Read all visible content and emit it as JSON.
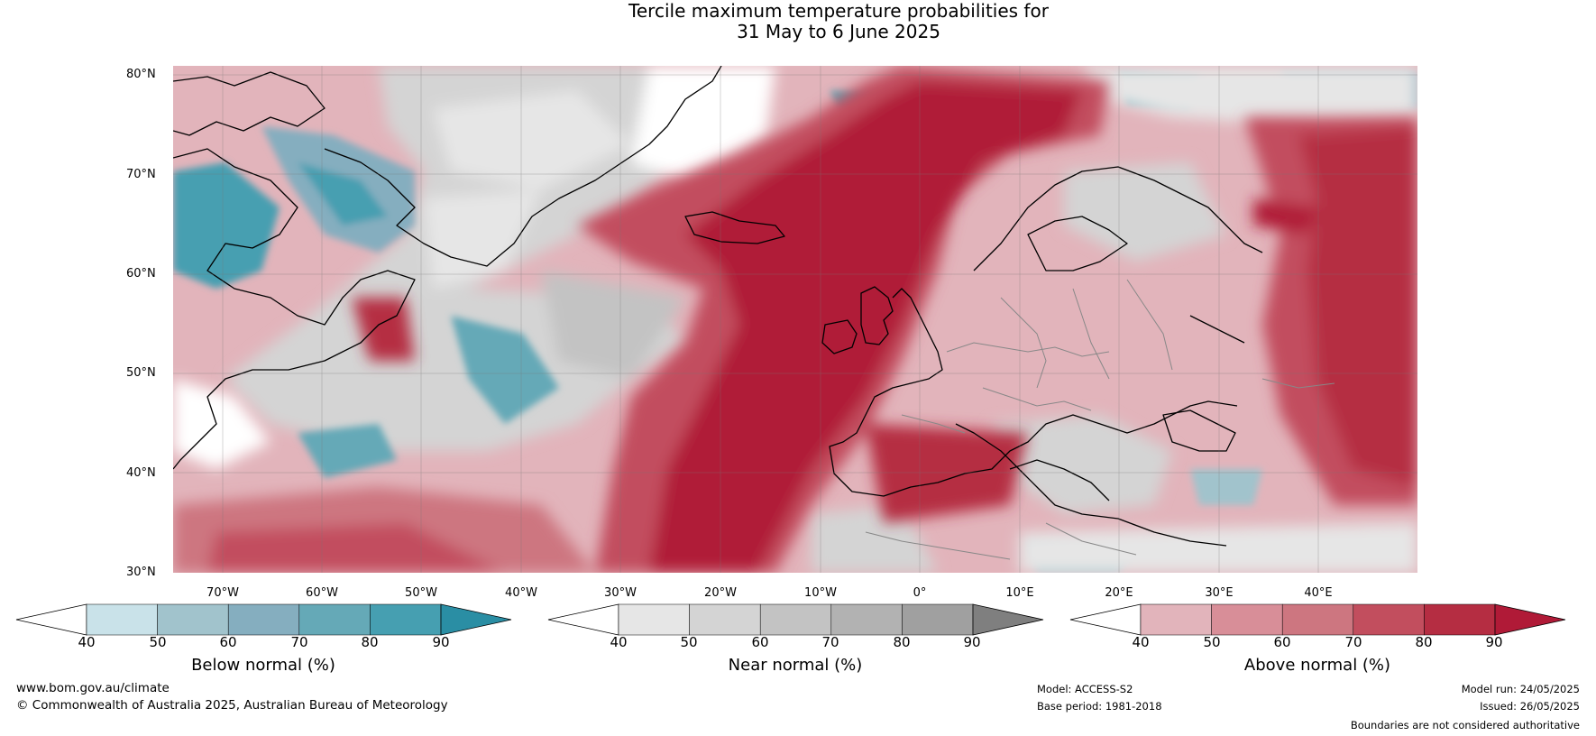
{
  "title": {
    "line1": "Tercile maximum temperature probabilities for",
    "line2": "31 May to 6 June 2025"
  },
  "map": {
    "lat_labels": [
      "80°N",
      "70°N",
      "60°N",
      "50°N",
      "40°N",
      "30°N"
    ],
    "lon_labels": [
      "70°W",
      "60°W",
      "50°W",
      "40°W",
      "30°W",
      "20°W",
      "10°W",
      "0°",
      "10°E",
      "20°E",
      "30°E",
      "40°E"
    ],
    "colors": {
      "background": "#ffffff",
      "coast": "#000000",
      "borders": "#888888",
      "grid": "#777777"
    }
  },
  "colorbars": [
    {
      "title": "Below normal (%)",
      "ticks": [
        "40",
        "50",
        "60",
        "70",
        "80",
        "90"
      ],
      "colors": [
        "#ffffff",
        "#c9e2e9",
        "#a1c3cc",
        "#85aebf",
        "#65a9b7",
        "#469fb1",
        "#2a8ea4"
      ]
    },
    {
      "title": "Near normal (%)",
      "ticks": [
        "40",
        "50",
        "60",
        "70",
        "80",
        "90"
      ],
      "colors": [
        "#ffffff",
        "#e6e6e6",
        "#d4d4d4",
        "#c3c3c3",
        "#b2b2b2",
        "#a0a0a0",
        "#7f7f7f"
      ]
    },
    {
      "title": "Above normal (%)",
      "ticks": [
        "40",
        "50",
        "60",
        "70",
        "80",
        "90"
      ],
      "colors": [
        "#ffffff",
        "#e2b4bb",
        "#d88e98",
        "#cd7680",
        "#c24e5e",
        "#b52d42",
        "#b01a37"
      ]
    }
  ],
  "footer": {
    "website": "www.bom.gov.au/climate",
    "copyright": "© Commonwealth of Australia 2025, Australian Bureau of Meteorology",
    "model": "Model: ACCESS-S2",
    "base_period": "Base period: 1981-2018",
    "model_run": "Model run: 24/05/2025",
    "issued": "Issued: 26/05/2025",
    "disclaimer": "Boundaries are not considered authoritative"
  }
}
